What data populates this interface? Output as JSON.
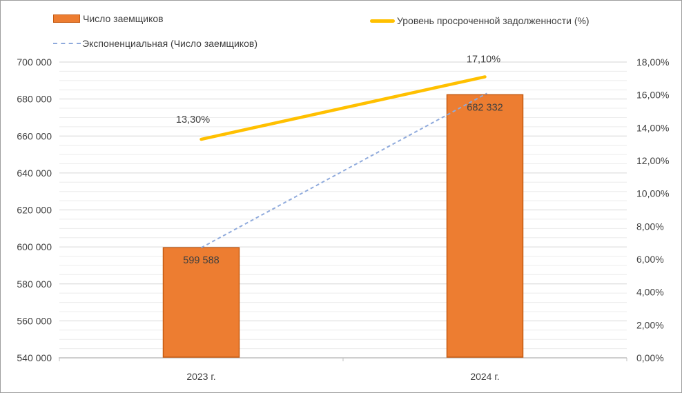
{
  "figure": {
    "background": "#FFFFFF",
    "border_color": "#9D9D9D",
    "text_color": "#404040"
  },
  "legend": {
    "position": "top",
    "items": [
      {
        "label": "Число заемщиков",
        "swatch": "bar-swatch",
        "color": "#ED7D31",
        "border_color": "#C55A11"
      },
      {
        "label": "Экспоненциальная (Число заемщиков)",
        "swatch": "dashed-line-swatch",
        "color": "#8FAADC"
      },
      {
        "label": "Уровень просроченной задолженности (%)",
        "swatch": "line-swatch",
        "color": "#FFC000"
      }
    ]
  },
  "chart_data": {
    "type": "bar",
    "categories": [
      "2023 г.",
      "2024 г."
    ],
    "series": [
      {
        "name": "Число заемщиков",
        "type": "bar",
        "axis": "left",
        "values": [
          599588,
          682332
        ],
        "data_labels": [
          "599 588",
          "682 332"
        ],
        "color": "#ED7D31",
        "border_color": "#C55A11"
      },
      {
        "name": "Уровень просроченной задолженности (%)",
        "type": "line",
        "axis": "right",
        "values": [
          13.3,
          17.1
        ],
        "data_labels": [
          "13,30%",
          "17,10%"
        ],
        "color": "#FFC000"
      },
      {
        "name": "Экспоненциальная (Число заемщиков)",
        "type": "trendline",
        "axis": "left",
        "values": [
          599588,
          682332
        ],
        "line_style": "dashed",
        "color": "#8FAADC"
      }
    ],
    "left_axis": {
      "min": 540000,
      "max": 700000,
      "major_step": 20000,
      "minor_step": 5000,
      "tick_labels": [
        "540 000",
        "560 000",
        "580 000",
        "600 000",
        "620 000",
        "640 000",
        "660 000",
        "680 000",
        "700 000"
      ]
    },
    "right_axis": {
      "min": 0,
      "max": 18,
      "major_step": 2,
      "tick_labels": [
        "0,00%",
        "2,00%",
        "4,00%",
        "6,00%",
        "8,00%",
        "10,00%",
        "12,00%",
        "14,00%",
        "16,00%",
        "18,00%"
      ]
    },
    "grid": {
      "on": true,
      "major_color": "#D6D6D6",
      "minor_color": "#ECECEC",
      "axis_color": "#BFBFBF"
    }
  }
}
